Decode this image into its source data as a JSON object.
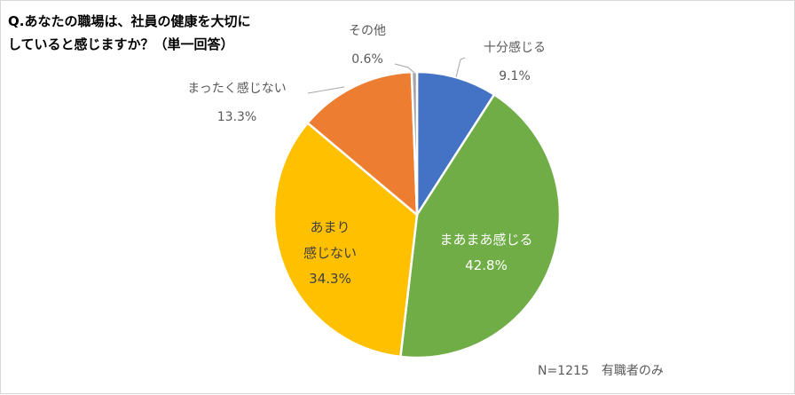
{
  "chart_data": {
    "type": "pie",
    "title_lines": [
      "Q.あなたの職場は、社員の健康を大切に",
      "していると感じますか？（単一回答）"
    ],
    "slices": [
      {
        "label": "十分感じる",
        "value": 9.1,
        "value_label": "9.1%",
        "color": "#4472C4"
      },
      {
        "label": "まあまあ感じる",
        "value": 42.8,
        "value_label": "42.8%",
        "color": "#70AD47"
      },
      {
        "label_lines": [
          "あまり",
          "感じない"
        ],
        "value": 34.3,
        "value_label": "34.3%",
        "color": "#FFC000"
      },
      {
        "label": "まったく感じない",
        "value": 13.3,
        "value_label": "13.3%",
        "color": "#ED7D31"
      },
      {
        "label": "その他",
        "value": 0.6,
        "value_label": "0.6%",
        "color": "#A5A5A5"
      }
    ],
    "start": "top",
    "direction": "clockwise",
    "note": "N=1215　有職者のみ"
  }
}
